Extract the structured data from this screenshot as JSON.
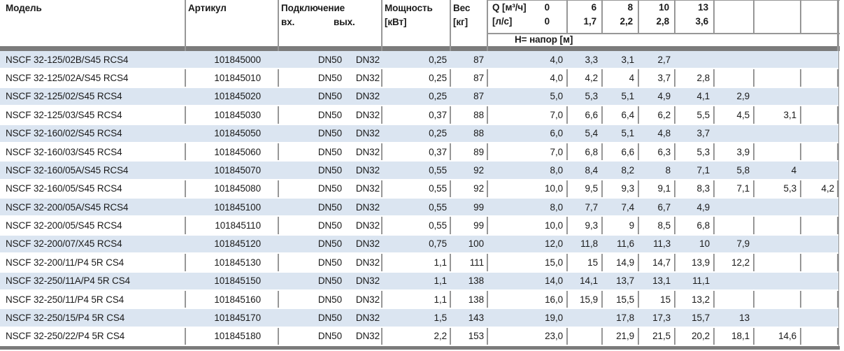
{
  "table": {
    "columns": {
      "model": "Модель",
      "article": "Артикул",
      "connection": "Подключение",
      "connection_in": "вх.",
      "connection_out": "вых.",
      "power_label": "Мощность",
      "power_unit": "[кВт]",
      "weight_label": "Вес",
      "weight_unit": "[кг]"
    },
    "flow_header": {
      "m3h_label": "Q [м³/ч]",
      "m3h_zero": "0",
      "ls_label": "[л/с]",
      "ls_zero": "0",
      "m3h_values": [
        "6",
        "8",
        "10",
        "13",
        "",
        "",
        ""
      ],
      "ls_values": [
        "1,7",
        "2,2",
        "2,8",
        "3,6",
        "",
        "",
        ""
      ],
      "head_row_label": "Н= напор [м]"
    },
    "rows": [
      {
        "model": "NSCF 32-125/02B/S45 RCS4",
        "article": "101845000",
        "inlet": "DN50",
        "outlet": "DN32",
        "power": "0,25",
        "weight": "87",
        "h": [
          "4,0",
          "3,3",
          "3,1",
          "2,7",
          "",
          "",
          "",
          ""
        ]
      },
      {
        "model": "NSCF 32-125/02A/S45 RCS4",
        "article": "101845010",
        "inlet": "DN50",
        "outlet": "DN32",
        "power": "0,25",
        "weight": "87",
        "h": [
          "4,0",
          "4,2",
          "4",
          "3,7",
          "2,8",
          "",
          "",
          ""
        ]
      },
      {
        "model": "NSCF 32-125/02/S45 RCS4",
        "article": "101845020",
        "inlet": "DN50",
        "outlet": "DN32",
        "power": "0,25",
        "weight": "87",
        "h": [
          "5,0",
          "5,3",
          "5,1",
          "4,9",
          "4,1",
          "2,9",
          "",
          ""
        ]
      },
      {
        "model": "NSCF 32-125/03/S45 RCS4",
        "article": "101845030",
        "inlet": "DN50",
        "outlet": "DN32",
        "power": "0,37",
        "weight": "88",
        "h": [
          "7,0",
          "6,6",
          "6,4",
          "6,2",
          "5,5",
          "4,5",
          "3,1",
          ""
        ]
      },
      {
        "model": "NSCF 32-160/02/S45 RCS4",
        "article": "101845050",
        "inlet": "DN50",
        "outlet": "DN32",
        "power": "0,25",
        "weight": "88",
        "h": [
          "6,0",
          "5,4",
          "5,1",
          "4,8",
          "3,7",
          "",
          "",
          ""
        ]
      },
      {
        "model": "NSCF 32-160/03/S45 RCS4",
        "article": "101845060",
        "inlet": "DN50",
        "outlet": "DN32",
        "power": "0,37",
        "weight": "89",
        "h": [
          "7,0",
          "6,8",
          "6,6",
          "6,3",
          "5,3",
          "3,9",
          "",
          ""
        ]
      },
      {
        "model": "NSCF 32-160/05A/S45 RCS4",
        "article": "101845070",
        "inlet": "DN50",
        "outlet": "DN32",
        "power": "0,55",
        "weight": "92",
        "h": [
          "8,0",
          "8,4",
          "8,2",
          "8",
          "7,1",
          "5,8",
          "4",
          ""
        ]
      },
      {
        "model": "NSCF 32-160/05/S45 RCS4",
        "article": "101845080",
        "inlet": "DN50",
        "outlet": "DN32",
        "power": "0,55",
        "weight": "92",
        "h": [
          "10,0",
          "9,5",
          "9,3",
          "9,1",
          "8,3",
          "7,1",
          "5,3",
          "4,2"
        ]
      },
      {
        "model": "NSCF 32-200/05A/S45 RCS4",
        "article": "101845100",
        "inlet": "DN50",
        "outlet": "DN32",
        "power": "0,55",
        "weight": "99",
        "h": [
          "8,0",
          "7,7",
          "7,4",
          "6,7",
          "4,9",
          "",
          "",
          ""
        ]
      },
      {
        "model": "NSCF 32-200/05/S45 RCS4",
        "article": "101845110",
        "inlet": "DN50",
        "outlet": "DN32",
        "power": "0,55",
        "weight": "99",
        "h": [
          "10,0",
          "9,3",
          "9",
          "8,5",
          "6,8",
          "",
          "",
          ""
        ]
      },
      {
        "model": "NSCF 32-200/07/X45 RCS4",
        "article": "101845120",
        "inlet": "DN50",
        "outlet": "DN32",
        "power": "0,75",
        "weight": "100",
        "h": [
          "12,0",
          "11,8",
          "11,6",
          "11,3",
          "10",
          "7,9",
          "",
          ""
        ]
      },
      {
        "model": "NSCF 32-200/11/P4 5R CS4",
        "article": "101845130",
        "inlet": "DN50",
        "outlet": "DN32",
        "power": "1,1",
        "weight": "111",
        "h": [
          "15,0",
          "15",
          "14,9",
          "14,7",
          "13,9",
          "12,2",
          "",
          ""
        ]
      },
      {
        "model": "NSCF 32-250/11A/P4 5R CS4",
        "article": "101845150",
        "inlet": "DN50",
        "outlet": "DN32",
        "power": "1,1",
        "weight": "138",
        "h": [
          "14,0",
          "14,1",
          "13,7",
          "13,1",
          "11,1",
          "",
          "",
          ""
        ]
      },
      {
        "model": "NSCF 32-250/11/P4 5R CS4",
        "article": "101845160",
        "inlet": "DN50",
        "outlet": "DN32",
        "power": "1,1",
        "weight": "138",
        "h": [
          "16,0",
          "15,9",
          "15,5",
          "15",
          "13,2",
          "",
          "",
          ""
        ]
      },
      {
        "model": "NSCF 32-250/15/P4 5R CS4",
        "article": "101845170",
        "inlet": "DN50",
        "outlet": "DN32",
        "power": "1,5",
        "weight": "143",
        "h": [
          "19,0",
          "",
          "17,8",
          "17,3",
          "15,7",
          "13",
          "",
          ""
        ]
      },
      {
        "model": "NSCF 32-250/22/P4 5R CS4",
        "article": "101845180",
        "inlet": "DN50",
        "outlet": "DN32",
        "power": "2,2",
        "weight": "153",
        "h": [
          "23,0",
          "",
          "21,9",
          "21,5",
          "20,2",
          "18,1",
          "14,6",
          ""
        ]
      }
    ]
  },
  "colors": {
    "row_alt_blue": "#dbe5f1",
    "divider_gray": "#979797",
    "bar_gray": "#7b7b7b",
    "text": "#1a1a1a"
  }
}
